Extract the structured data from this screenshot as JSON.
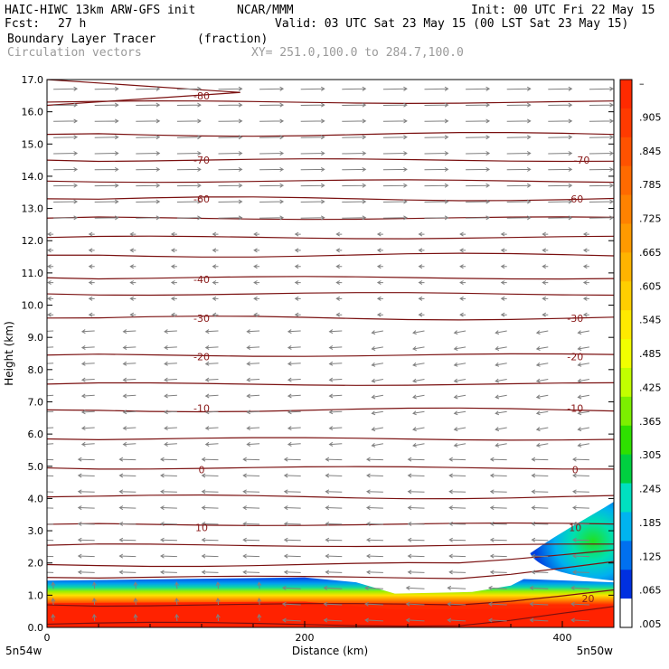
{
  "header": {
    "model": "HAIC-HIWC 13km ARW-GFS init",
    "org": "NCAR/MMM",
    "init": "Init: 00 UTC Fri 22 May 15",
    "fcst_label": "Fcst:",
    "fcst_value": "27 h",
    "valid": "Valid: 03 UTC Sat 23 May 15 (00 LST Sat 23 May 15)",
    "field1_name": "Boundary Layer Tracer",
    "field1_unit": "(fraction)",
    "field2_name": "Circulation vectors",
    "xsection": "XY= 251.0,100.0 to 284.7,100.0"
  },
  "chart_data": {
    "type": "heatmap",
    "title": "Boundary Layer Tracer",
    "xlabel": "Distance (km)",
    "ylabel": "Height (km)",
    "xlim": [
      0,
      440
    ],
    "ylim": [
      0,
      17
    ],
    "x_ticks": [
      "0",
      "200",
      "400"
    ],
    "x_tick_values": [
      0,
      200,
      400
    ],
    "y_ticks": [
      "0.0",
      "1.0",
      "2.0",
      "3.0",
      "4.0",
      "5.0",
      "6.0",
      "7.0",
      "8.0",
      "9.0",
      "10.0",
      "11.0",
      "12.0",
      "13.0",
      "14.0",
      "15.0",
      "16.0",
      "17.0"
    ],
    "y_tick_values": [
      0,
      1,
      2,
      3,
      4,
      5,
      6,
      7,
      8,
      9,
      10,
      11,
      12,
      13,
      14,
      15,
      16,
      17
    ],
    "x_endpoints": [
      "5n54w",
      "5n50w"
    ],
    "colorbar_labels": [
      "–",
      ".905",
      ".845",
      ".785",
      ".725",
      ".665",
      ".605",
      ".545",
      ".485",
      ".425",
      ".365",
      ".305",
      ".245",
      ".185",
      ".125",
      ".065",
      ".005"
    ],
    "colorbar_colors": [
      "#ff2a00",
      "#ff3a00",
      "#ff5200",
      "#ff6a00",
      "#ff8200",
      "#ff9a00",
      "#ffb400",
      "#ffce00",
      "#ffea00",
      "#f2ff00",
      "#c2ff00",
      "#7cf000",
      "#2ee000",
      "#00d040",
      "#00e0c0",
      "#00b4f0",
      "#0070f0",
      "#0030e0",
      "#ffffff"
    ],
    "tracer_boundary_km": [
      {
        "x": 0,
        "h": 1.45
      },
      {
        "x": 100,
        "h": 1.5
      },
      {
        "x": 200,
        "h": 1.55
      },
      {
        "x": 240,
        "h": 1.4
      },
      {
        "x": 270,
        "h": 1.05
      },
      {
        "x": 330,
        "h": 1.1
      },
      {
        "x": 360,
        "h": 1.3
      },
      {
        "x": 370,
        "h": 1.5
      }
    ],
    "isotherm_labels": [
      {
        "value": "-80",
        "x": 120,
        "h": 16.5
      },
      {
        "value": "-70",
        "x": 120,
        "h": 14.5
      },
      {
        "value": "-70",
        "x": 415,
        "h": 14.5
      },
      {
        "value": "-60",
        "x": 120,
        "h": 13.3
      },
      {
        "value": "-60",
        "x": 410,
        "h": 13.3
      },
      {
        "value": "-40",
        "x": 120,
        "h": 10.8
      },
      {
        "value": "-30",
        "x": 120,
        "h": 9.6
      },
      {
        "value": "-30",
        "x": 410,
        "h": 9.6
      },
      {
        "value": "-20",
        "x": 120,
        "h": 8.4
      },
      {
        "value": "-20",
        "x": 410,
        "h": 8.4
      },
      {
        "value": "-10",
        "x": 120,
        "h": 6.8
      },
      {
        "value": "-10",
        "x": 410,
        "h": 6.8
      },
      {
        "value": "0",
        "x": 120,
        "h": 4.9
      },
      {
        "value": "0",
        "x": 410,
        "h": 4.9
      },
      {
        "value": "10",
        "x": 120,
        "h": 3.1
      },
      {
        "value": "10",
        "x": 410,
        "h": 3.1
      },
      {
        "value": "20",
        "x": 420,
        "h": 0.9
      }
    ],
    "grid": false
  }
}
